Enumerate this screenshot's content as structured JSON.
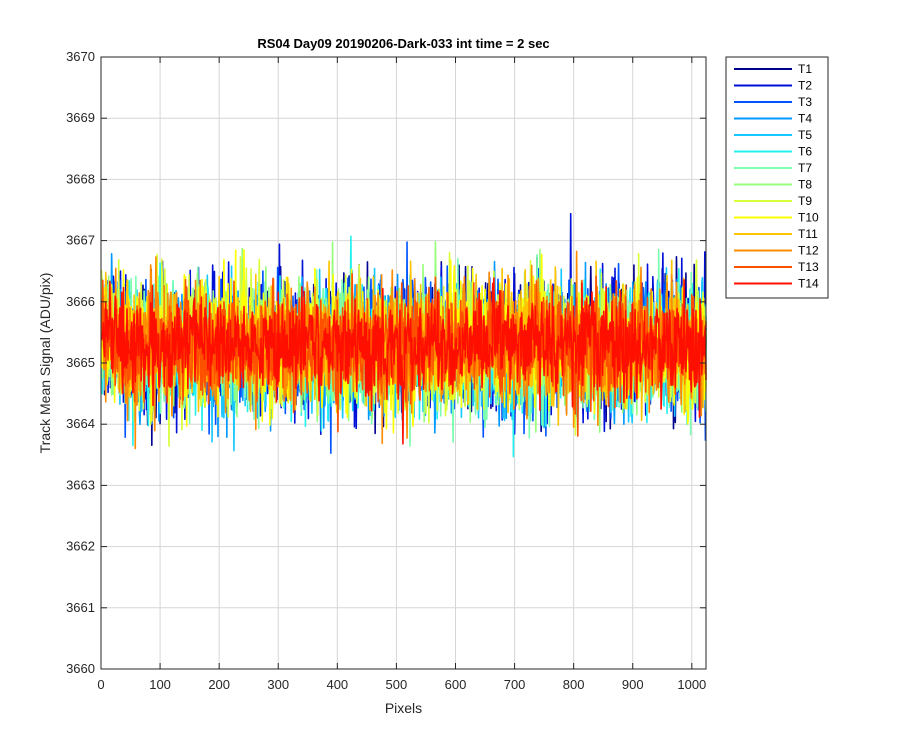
{
  "chart_data": {
    "type": "line",
    "title": "RS04 Day09 20190206-Dark-033 int time = 2 sec",
    "xlabel": "Pixels",
    "ylabel": "Track Mean Signal (ADU/pix)",
    "xlim": [
      0,
      1024
    ],
    "ylim": [
      3660,
      3670
    ],
    "xticks": [
      0,
      100,
      200,
      300,
      400,
      500,
      600,
      700,
      800,
      900,
      1000
    ],
    "yticks": [
      3660,
      3661,
      3662,
      3663,
      3664,
      3665,
      3666,
      3667,
      3668,
      3669,
      3670
    ],
    "grid": true,
    "legend_position": "outside-right-top",
    "x_range_points": [
      1,
      1024
    ],
    "series": [
      {
        "name": "T1",
        "color": "#00008f",
        "mean": 3665.3,
        "spread": 0.85
      },
      {
        "name": "T2",
        "color": "#0010d8",
        "mean": 3665.3,
        "spread": 0.85
      },
      {
        "name": "T3",
        "color": "#0054ff",
        "mean": 3665.3,
        "spread": 0.8
      },
      {
        "name": "T4",
        "color": "#0099ff",
        "mean": 3665.2,
        "spread": 0.8
      },
      {
        "name": "T5",
        "color": "#16c8ff",
        "mean": 3665.2,
        "spread": 0.8
      },
      {
        "name": "T6",
        "color": "#24f0ee",
        "mean": 3665.2,
        "spread": 0.8
      },
      {
        "name": "T7",
        "color": "#7bffb0",
        "mean": 3665.2,
        "spread": 0.8
      },
      {
        "name": "T8",
        "color": "#96ff7b",
        "mean": 3665.3,
        "spread": 0.8
      },
      {
        "name": "T9",
        "color": "#d8ff3a",
        "mean": 3665.3,
        "spread": 0.8
      },
      {
        "name": "T10",
        "color": "#ffff00",
        "mean": 3665.3,
        "spread": 0.8
      },
      {
        "name": "T11",
        "color": "#ffc400",
        "mean": 3665.3,
        "spread": 0.75
      },
      {
        "name": "T12",
        "color": "#ff8c00",
        "mean": 3665.3,
        "spread": 0.75
      },
      {
        "name": "T13",
        "color": "#ff5000",
        "mean": 3665.3,
        "spread": 0.7
      },
      {
        "name": "T14",
        "color": "#ff0f00",
        "mean": 3665.3,
        "spread": 0.65
      }
    ]
  }
}
